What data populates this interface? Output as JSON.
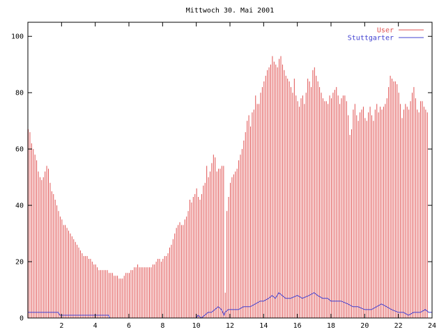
{
  "chart_data": {
    "type": "bar",
    "title": "Mittwoch 30. Mai 2001",
    "xlabel": "",
    "ylabel": "",
    "xlim": [
      0,
      24
    ],
    "ylim": [
      0,
      105
    ],
    "x_ticks": [
      2,
      4,
      6,
      8,
      10,
      12,
      14,
      16,
      18,
      20,
      22,
      24
    ],
    "y_ticks": [
      0,
      20,
      40,
      60,
      80,
      100
    ],
    "grid": false,
    "legend_position": "top-right",
    "series": [
      {
        "name": "User",
        "style": "impulses",
        "color": "#e05050",
        "points": [
          [
            0.0,
            67
          ],
          [
            0.1,
            66
          ],
          [
            0.2,
            62
          ],
          [
            0.3,
            60
          ],
          [
            0.4,
            58
          ],
          [
            0.5,
            56
          ],
          [
            0.6,
            52
          ],
          [
            0.7,
            50
          ],
          [
            0.8,
            49
          ],
          [
            0.9,
            50
          ],
          [
            1.0,
            52
          ],
          [
            1.1,
            54
          ],
          [
            1.2,
            53
          ],
          [
            1.3,
            48
          ],
          [
            1.4,
            45
          ],
          [
            1.5,
            44
          ],
          [
            1.6,
            42
          ],
          [
            1.7,
            40
          ],
          [
            1.8,
            38
          ],
          [
            1.9,
            36
          ],
          [
            2.0,
            35
          ],
          [
            2.1,
            33
          ],
          [
            2.2,
            33
          ],
          [
            2.3,
            32
          ],
          [
            2.4,
            31
          ],
          [
            2.5,
            30
          ],
          [
            2.6,
            29
          ],
          [
            2.7,
            28
          ],
          [
            2.8,
            27
          ],
          [
            2.9,
            26
          ],
          [
            3.0,
            25
          ],
          [
            3.1,
            24
          ],
          [
            3.2,
            23
          ],
          [
            3.3,
            22
          ],
          [
            3.4,
            22
          ],
          [
            3.5,
            22
          ],
          [
            3.6,
            21
          ],
          [
            3.7,
            21
          ],
          [
            3.8,
            20
          ],
          [
            3.9,
            19
          ],
          [
            4.0,
            19
          ],
          [
            4.1,
            18
          ],
          [
            4.2,
            17
          ],
          [
            4.3,
            17
          ],
          [
            4.4,
            17
          ],
          [
            4.5,
            17
          ],
          [
            4.6,
            17
          ],
          [
            4.7,
            17
          ],
          [
            4.8,
            16
          ],
          [
            4.9,
            16
          ],
          [
            5.0,
            16
          ],
          [
            5.1,
            15
          ],
          [
            5.2,
            15
          ],
          [
            5.3,
            15
          ],
          [
            5.4,
            14
          ],
          [
            5.5,
            14
          ],
          [
            5.6,
            14
          ],
          [
            5.7,
            15
          ],
          [
            5.8,
            16
          ],
          [
            5.9,
            16
          ],
          [
            6.0,
            16
          ],
          [
            6.1,
            17
          ],
          [
            6.2,
            17
          ],
          [
            6.3,
            18
          ],
          [
            6.4,
            18
          ],
          [
            6.5,
            19
          ],
          [
            6.6,
            18
          ],
          [
            6.7,
            18
          ],
          [
            6.8,
            18
          ],
          [
            6.9,
            18
          ],
          [
            7.0,
            18
          ],
          [
            7.1,
            18
          ],
          [
            7.2,
            18
          ],
          [
            7.3,
            18
          ],
          [
            7.4,
            19
          ],
          [
            7.5,
            19
          ],
          [
            7.6,
            20
          ],
          [
            7.7,
            21
          ],
          [
            7.8,
            21
          ],
          [
            7.9,
            20
          ],
          [
            8.0,
            21
          ],
          [
            8.1,
            22
          ],
          [
            8.2,
            22
          ],
          [
            8.3,
            23
          ],
          [
            8.4,
            25
          ],
          [
            8.5,
            26
          ],
          [
            8.6,
            28
          ],
          [
            8.7,
            30
          ],
          [
            8.8,
            32
          ],
          [
            8.9,
            33
          ],
          [
            9.0,
            34
          ],
          [
            9.1,
            33
          ],
          [
            9.2,
            33
          ],
          [
            9.3,
            35
          ],
          [
            9.4,
            36
          ],
          [
            9.5,
            38
          ],
          [
            9.6,
            42
          ],
          [
            9.7,
            41
          ],
          [
            9.8,
            43
          ],
          [
            9.9,
            44
          ],
          [
            10.0,
            46
          ],
          [
            10.1,
            43
          ],
          [
            10.2,
            42
          ],
          [
            10.3,
            44
          ],
          [
            10.4,
            47
          ],
          [
            10.5,
            48
          ],
          [
            10.6,
            54
          ],
          [
            10.7,
            50
          ],
          [
            10.8,
            52
          ],
          [
            10.9,
            55
          ],
          [
            11.0,
            58
          ],
          [
            11.1,
            57
          ],
          [
            11.2,
            52
          ],
          [
            11.3,
            53
          ],
          [
            11.4,
            53
          ],
          [
            11.5,
            54
          ],
          [
            11.6,
            54
          ],
          [
            11.7,
            9
          ],
          [
            11.8,
            38
          ],
          [
            11.9,
            43
          ],
          [
            12.0,
            48
          ],
          [
            12.1,
            50
          ],
          [
            12.2,
            51
          ],
          [
            12.3,
            52
          ],
          [
            12.4,
            53
          ],
          [
            12.5,
            56
          ],
          [
            12.6,
            58
          ],
          [
            12.7,
            60
          ],
          [
            12.8,
            63
          ],
          [
            12.9,
            66
          ],
          [
            13.0,
            70
          ],
          [
            13.1,
            72
          ],
          [
            13.2,
            68
          ],
          [
            13.3,
            73
          ],
          [
            13.4,
            74
          ],
          [
            13.5,
            79
          ],
          [
            13.6,
            76
          ],
          [
            13.7,
            76
          ],
          [
            13.8,
            80
          ],
          [
            13.9,
            82
          ],
          [
            14.0,
            84
          ],
          [
            14.1,
            86
          ],
          [
            14.2,
            88
          ],
          [
            14.3,
            89
          ],
          [
            14.4,
            90
          ],
          [
            14.5,
            93
          ],
          [
            14.6,
            91
          ],
          [
            14.7,
            90
          ],
          [
            14.8,
            89
          ],
          [
            14.9,
            92
          ],
          [
            15.0,
            93
          ],
          [
            15.1,
            90
          ],
          [
            15.2,
            88
          ],
          [
            15.3,
            86
          ],
          [
            15.4,
            85
          ],
          [
            15.5,
            84
          ],
          [
            15.6,
            82
          ],
          [
            15.7,
            80
          ],
          [
            15.8,
            85
          ],
          [
            15.9,
            79
          ],
          [
            16.0,
            77
          ],
          [
            16.1,
            75
          ],
          [
            16.2,
            78
          ],
          [
            16.3,
            79
          ],
          [
            16.4,
            76
          ],
          [
            16.5,
            80
          ],
          [
            16.6,
            85
          ],
          [
            16.7,
            84
          ],
          [
            16.8,
            82
          ],
          [
            16.9,
            88
          ],
          [
            17.0,
            89
          ],
          [
            17.1,
            86
          ],
          [
            17.2,
            84
          ],
          [
            17.3,
            82
          ],
          [
            17.4,
            80
          ],
          [
            17.5,
            78
          ],
          [
            17.6,
            77
          ],
          [
            17.7,
            77
          ],
          [
            17.8,
            76
          ],
          [
            17.9,
            79
          ],
          [
            18.0,
            78
          ],
          [
            18.1,
            80
          ],
          [
            18.2,
            81
          ],
          [
            18.3,
            82
          ],
          [
            18.4,
            79
          ],
          [
            18.5,
            76
          ],
          [
            18.6,
            78
          ],
          [
            18.7,
            79
          ],
          [
            18.8,
            79
          ],
          [
            18.9,
            77
          ],
          [
            19.0,
            72
          ],
          [
            19.1,
            65
          ],
          [
            19.2,
            67
          ],
          [
            19.3,
            74
          ],
          [
            19.4,
            76
          ],
          [
            19.5,
            72
          ],
          [
            19.6,
            70
          ],
          [
            19.7,
            73
          ],
          [
            19.8,
            74
          ],
          [
            19.9,
            75
          ],
          [
            20.0,
            71
          ],
          [
            20.1,
            70
          ],
          [
            20.2,
            73
          ],
          [
            20.3,
            75
          ],
          [
            20.4,
            72
          ],
          [
            20.5,
            70
          ],
          [
            20.6,
            74
          ],
          [
            20.7,
            76
          ],
          [
            20.8,
            73
          ],
          [
            20.9,
            75
          ],
          [
            21.0,
            74
          ],
          [
            21.1,
            75
          ],
          [
            21.2,
            76
          ],
          [
            21.3,
            78
          ],
          [
            21.4,
            82
          ],
          [
            21.5,
            86
          ],
          [
            21.6,
            85
          ],
          [
            21.7,
            84
          ],
          [
            21.8,
            84
          ],
          [
            21.9,
            83
          ],
          [
            22.0,
            80
          ],
          [
            22.1,
            76
          ],
          [
            22.2,
            71
          ],
          [
            22.3,
            74
          ],
          [
            22.4,
            76
          ],
          [
            22.5,
            75
          ],
          [
            22.6,
            74
          ],
          [
            22.7,
            77
          ],
          [
            22.8,
            80
          ],
          [
            22.9,
            82
          ],
          [
            23.0,
            78
          ],
          [
            23.1,
            74
          ],
          [
            23.2,
            73
          ],
          [
            23.3,
            77
          ],
          [
            23.4,
            77
          ],
          [
            23.5,
            75
          ],
          [
            23.6,
            74
          ],
          [
            23.7,
            73
          ]
        ]
      },
      {
        "name": "Stuttgarter",
        "style": "line",
        "color": "#4040d0",
        "points": [
          [
            0.0,
            2
          ],
          [
            1.8,
            2
          ],
          [
            1.9,
            1
          ],
          [
            4.8,
            1
          ],
          [
            4.85,
            0
          ],
          [
            10.0,
            0
          ],
          [
            10.1,
            1
          ],
          [
            10.3,
            0
          ],
          [
            10.5,
            1
          ],
          [
            10.7,
            2
          ],
          [
            10.9,
            2
          ],
          [
            11.1,
            3
          ],
          [
            11.3,
            4
          ],
          [
            11.5,
            3
          ],
          [
            11.65,
            1
          ],
          [
            11.7,
            2
          ],
          [
            11.9,
            3
          ],
          [
            12.2,
            3
          ],
          [
            12.5,
            3
          ],
          [
            12.8,
            4
          ],
          [
            13.2,
            4
          ],
          [
            13.5,
            5
          ],
          [
            13.8,
            6
          ],
          [
            14.0,
            6
          ],
          [
            14.3,
            7
          ],
          [
            14.5,
            8
          ],
          [
            14.7,
            7
          ],
          [
            14.9,
            9
          ],
          [
            15.1,
            8
          ],
          [
            15.3,
            7
          ],
          [
            15.6,
            7
          ],
          [
            16.0,
            8
          ],
          [
            16.3,
            7
          ],
          [
            16.7,
            8
          ],
          [
            17.0,
            9
          ],
          [
            17.2,
            8
          ],
          [
            17.5,
            7
          ],
          [
            17.8,
            7
          ],
          [
            18.0,
            6
          ],
          [
            18.3,
            6
          ],
          [
            18.6,
            6
          ],
          [
            19.0,
            5
          ],
          [
            19.3,
            4
          ],
          [
            19.6,
            4
          ],
          [
            20.0,
            3
          ],
          [
            20.4,
            3
          ],
          [
            20.7,
            4
          ],
          [
            21.0,
            5
          ],
          [
            21.3,
            4
          ],
          [
            21.6,
            3
          ],
          [
            22.0,
            2
          ],
          [
            22.3,
            2
          ],
          [
            22.6,
            1
          ],
          [
            22.9,
            2
          ],
          [
            23.3,
            2
          ],
          [
            23.6,
            3
          ],
          [
            23.8,
            2
          ],
          [
            24.0,
            2
          ]
        ]
      }
    ]
  }
}
